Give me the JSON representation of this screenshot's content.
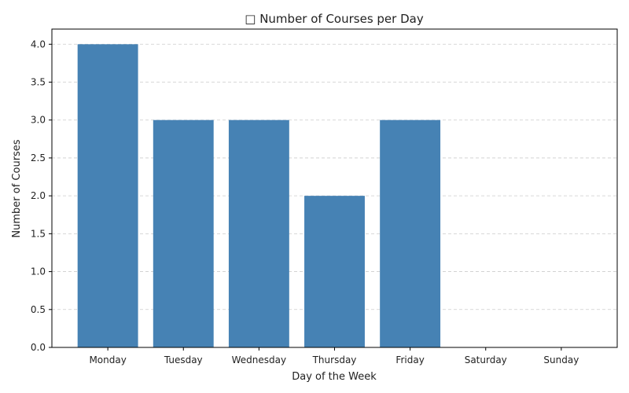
{
  "chart_data": {
    "type": "bar",
    "title": "□ Number of Courses per Day",
    "xlabel": "Day of the Week",
    "ylabel": "Number of Courses",
    "categories": [
      "Monday",
      "Tuesday",
      "Wednesday",
      "Thursday",
      "Friday",
      "Saturday",
      "Sunday"
    ],
    "values": [
      4,
      3,
      3,
      2,
      3,
      0,
      0
    ],
    "ylim": [
      0,
      4.2
    ],
    "yticks": [
      "0.0",
      "0.5",
      "1.0",
      "1.5",
      "2.0",
      "2.5",
      "3.0",
      "3.5",
      "4.0"
    ],
    "bar_color": "#4682b4",
    "grid": true
  }
}
